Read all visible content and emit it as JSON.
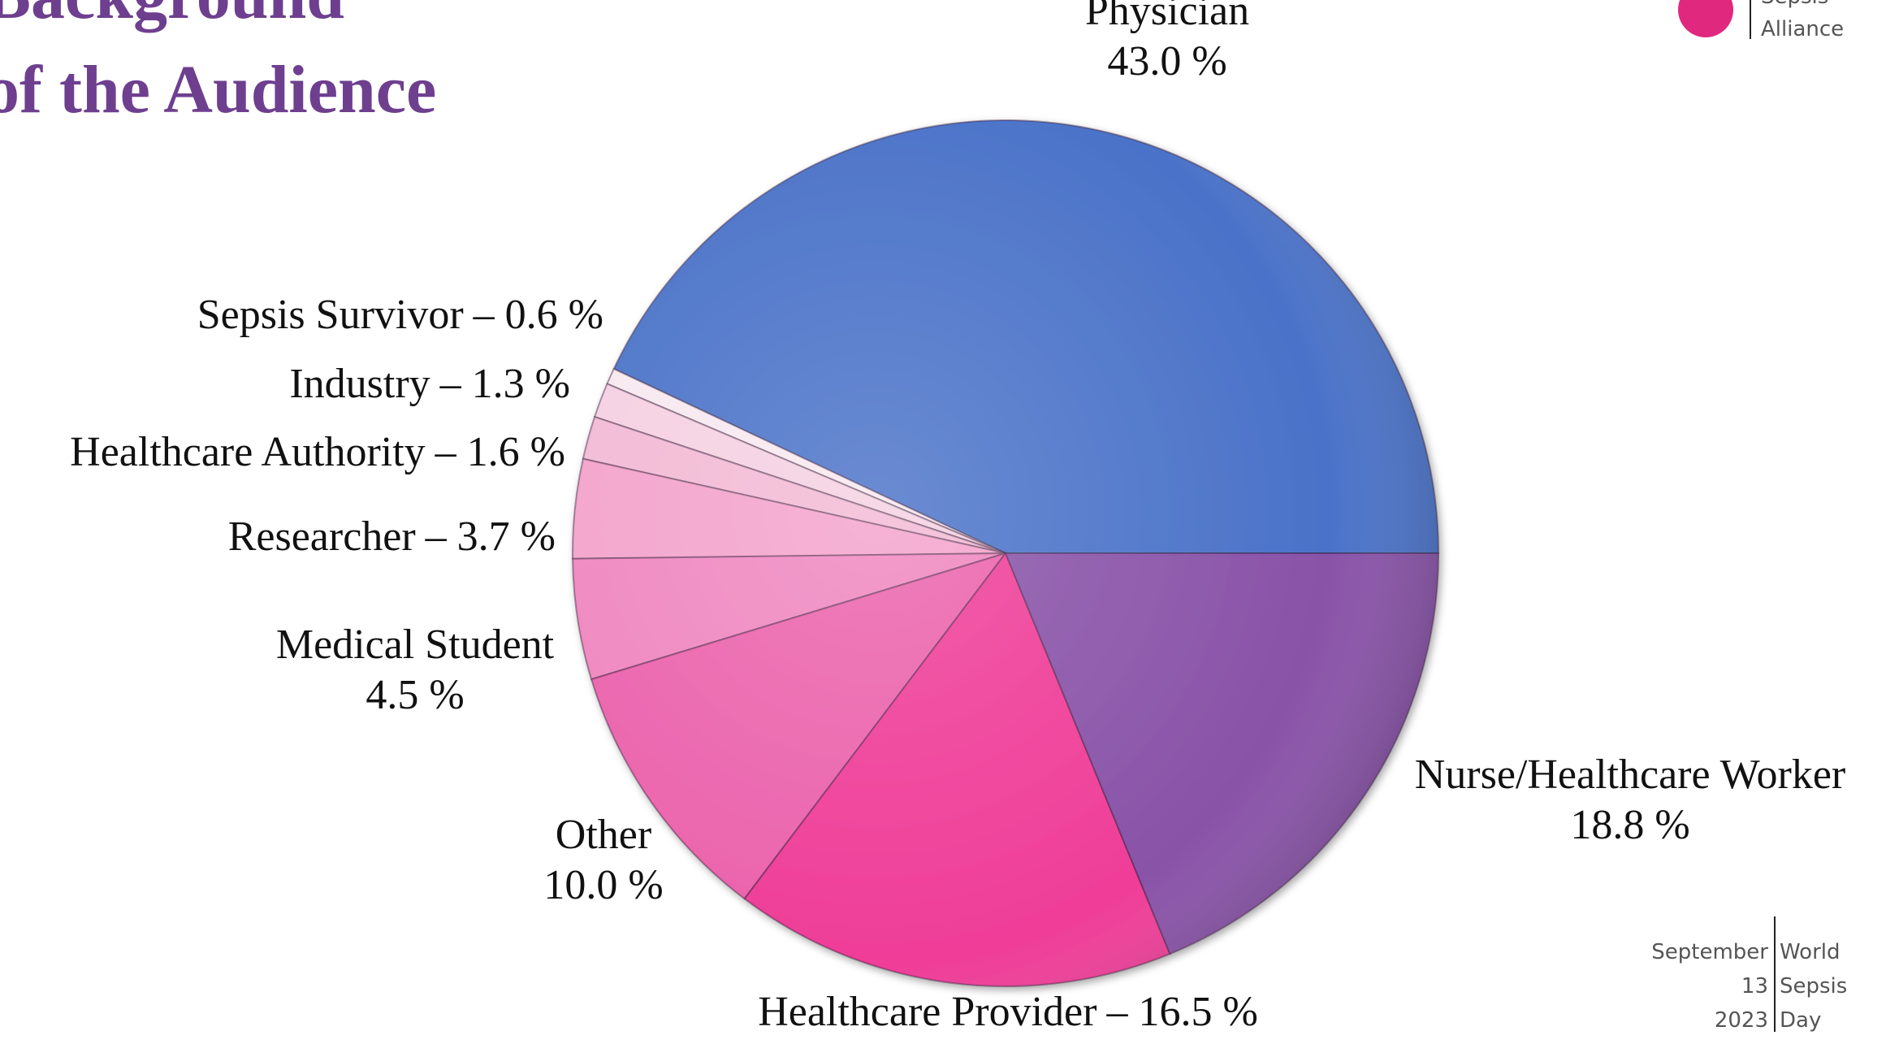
{
  "chart_data": {
    "type": "pie",
    "title": [
      "Background",
      "of the Audience"
    ],
    "categories": [
      "Physician",
      "Sepsis Survivor",
      "Industry",
      "Healthcare Authority",
      "Researcher",
      "Medical Student",
      "Other",
      "Healthcare Provider",
      "Nurse/Healthcare Worker"
    ],
    "values": [
      43.0,
      0.6,
      1.3,
      1.6,
      3.7,
      4.5,
      10.0,
      16.5,
      18.8
    ],
    "value_labels": [
      "43.0 %",
      "– 0.6 %",
      "– 1.3 %",
      "– 1.6 %",
      "– 3.7 %",
      "4.5 %",
      "10.0 %",
      "– 16.5 %",
      "18.8 %"
    ],
    "colors": [
      "#4a72c8",
      "#f7e8f0",
      "#f5d0e2",
      "#f2b9d4",
      "#f3a2cb",
      "#ef86bf",
      "#eb62ac",
      "#ef3d98",
      "#8953a8"
    ]
  },
  "logo": [
    "Sepsis",
    "Alliance"
  ],
  "footer": {
    "left": [
      "September",
      "13",
      "2023"
    ],
    "right": [
      "World",
      "Sepsis",
      "Day"
    ]
  }
}
